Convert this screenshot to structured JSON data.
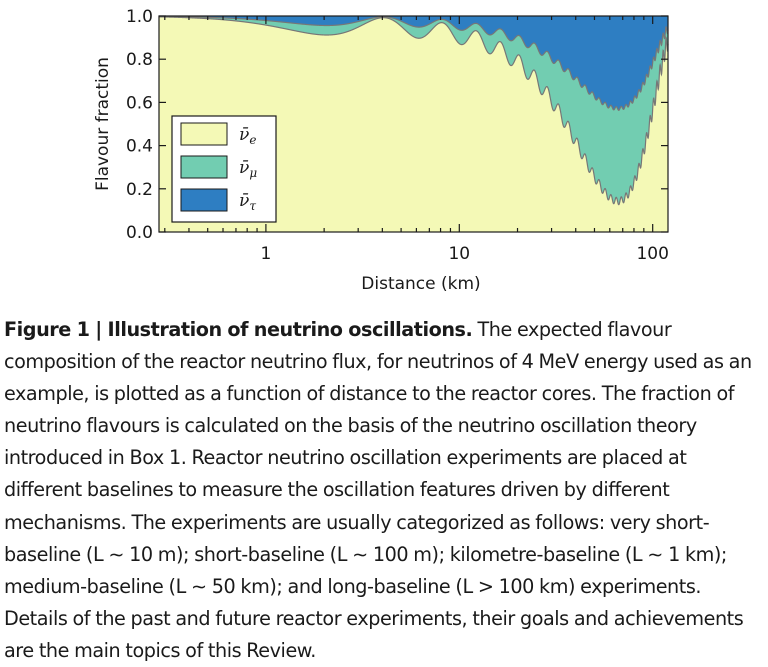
{
  "chart_data": {
    "type": "area",
    "xlabel": "Distance (km)",
    "ylabel": "Flavour fraction",
    "xscale": "log",
    "xlim": [
      0.28,
      120
    ],
    "ylim": [
      0.0,
      1.0
    ],
    "x_ticks": [
      {
        "value": 1,
        "label": "1"
      },
      {
        "value": 10,
        "label": "10"
      },
      {
        "value": 100,
        "label": "100"
      }
    ],
    "y_ticks": [
      {
        "value": 0.0,
        "label": "0.0"
      },
      {
        "value": 0.2,
        "label": "0.2"
      },
      {
        "value": 0.4,
        "label": "0.4"
      },
      {
        "value": 0.6,
        "label": "0.6"
      },
      {
        "value": 0.8,
        "label": "0.8"
      },
      {
        "value": 1.0,
        "label": "1.0"
      }
    ],
    "grid": false,
    "legend_position": "lower-left",
    "stacked": true,
    "energy_mev": 4,
    "series": [
      {
        "name": "ν̄e",
        "symbol": "ν̄",
        "sub": "e",
        "color": "#f4f9b6"
      },
      {
        "name": "ν̄μ",
        "symbol": "ν̄",
        "sub": "μ",
        "color": "#72cdb1"
      },
      {
        "name": "ν̄τ",
        "symbol": "ν̄",
        "sub": "τ",
        "color": "#2e7ec2"
      }
    ]
  },
  "caption": {
    "title": "Figure 1 | Illustration of neutrino oscillations.",
    "text": " The expected flavour composition of the reactor neutrino flux, for neutrinos of 4 MeV energy used as an example, is plotted as a function of distance to the reactor cores. The fraction of neutrino flavours is calculated on the basis of the neutrino oscillation theory introduced in Box 1. Reactor neutrino oscillation experiments are placed at different baselines to measure the oscillation features driven by different mechanisms. The experiments are usually categorized as follows: very short-baseline (L ∼ 10 m); short-baseline (L ∼ 100 m); kilometre-baseline (L ∼ 1 km); medium-baseline (L ∼ 50 km); and long-baseline (L > 100 km) experiments. Details of the past and future reactor experiments, their goals and achievements are the main topics of this Review."
  }
}
